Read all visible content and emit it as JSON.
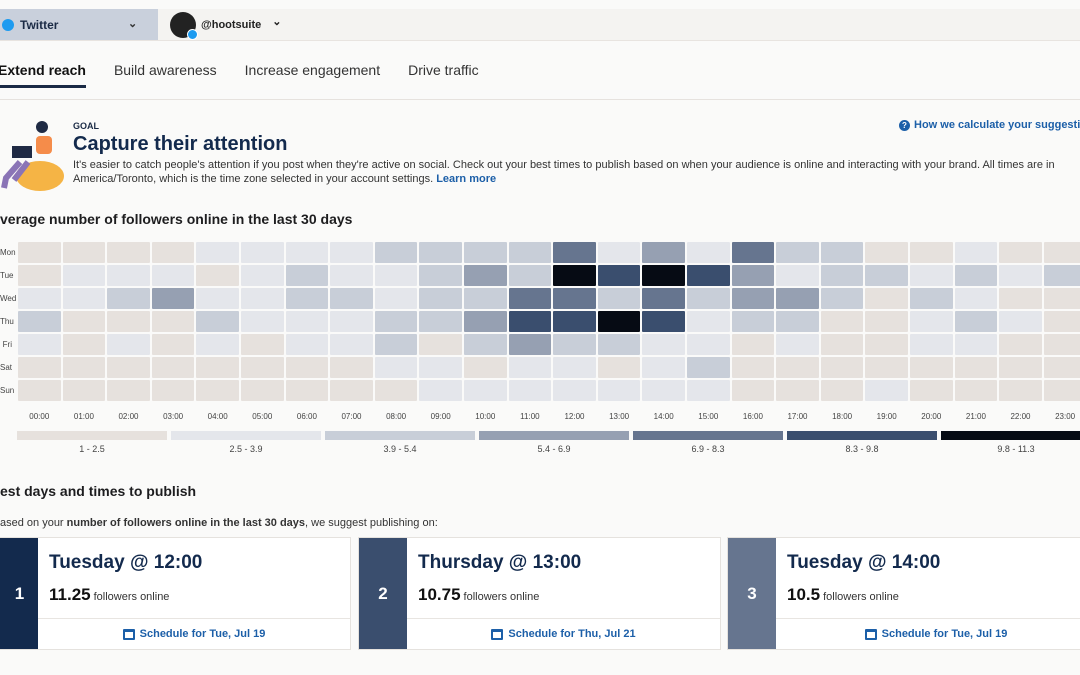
{
  "topbar": {
    "network": "Twitter",
    "account": "@hootsuite"
  },
  "tabs": [
    "Extend reach",
    "Build awareness",
    "Increase engagement",
    "Drive traffic"
  ],
  "goal": {
    "label": "GOAL",
    "title": "Capture their attention",
    "description": "It's easier to catch people's attention if you post when they're active on social. Check out your best times to publish based on when your audience is online and interacting with your brand. All times are in America/Toronto, which is the time zone selected in your account settings.",
    "learn_more": "Learn more",
    "how_link": "How we calculate your suggestion"
  },
  "heatmap_title": "verage number of followers online in the last 30 days",
  "chart_data": {
    "type": "heatmap",
    "title": "verage number of followers online in the last 30 days",
    "rows": [
      "Mon",
      "Tue",
      "Wed",
      "Thu",
      "Fri",
      "Sat",
      "Sun"
    ],
    "columns": [
      "00:00",
      "01:00",
      "02:00",
      "03:00",
      "04:00",
      "05:00",
      "06:00",
      "07:00",
      "08:00",
      "09:00",
      "10:00",
      "11:00",
      "12:00",
      "13:00",
      "14:00",
      "15:00",
      "16:00",
      "17:00",
      "18:00",
      "19:00",
      "20:00",
      "21:00",
      "22:00",
      "23:00"
    ],
    "bins": [
      {
        "label": "1 - 2.5",
        "min": 1,
        "max": 2.5,
        "color": "#e6e1dd"
      },
      {
        "label": "2.5 - 3.9",
        "min": 2.5,
        "max": 3.9,
        "color": "#e4e6eb"
      },
      {
        "label": "3.9 - 5.4",
        "min": 3.9,
        "max": 5.4,
        "color": "#c8ced8"
      },
      {
        "label": "5.4 - 6.9",
        "min": 5.4,
        "max": 6.9,
        "color": "#96a0b2"
      },
      {
        "label": "6.9 - 8.3",
        "min": 6.9,
        "max": 8.3,
        "color": "#66758f"
      },
      {
        "label": "8.3 - 9.8",
        "min": 8.3,
        "max": 9.8,
        "color": "#3a4e6e"
      },
      {
        "label": "9.8 - 11.3",
        "min": 9.8,
        "max": 11.3,
        "color": "#060b14"
      }
    ],
    "values": [
      [
        1.8,
        1.8,
        1.8,
        1.8,
        3.2,
        3.2,
        3.2,
        3.2,
        4.6,
        4.6,
        4.6,
        4.6,
        7.6,
        3.2,
        6.1,
        3.2,
        7.6,
        4.6,
        4.6,
        1.8,
        1.8,
        3.2,
        1.8,
        1.8
      ],
      [
        1.8,
        3.2,
        3.2,
        3.2,
        1.8,
        3.2,
        4.6,
        3.2,
        3.2,
        4.6,
        6.1,
        4.6,
        11.25,
        9.0,
        10.5,
        9.0,
        6.1,
        3.2,
        4.6,
        4.6,
        3.2,
        4.6,
        3.2,
        4.6
      ],
      [
        3.2,
        3.2,
        4.6,
        6.1,
        3.2,
        3.2,
        4.6,
        4.6,
        3.2,
        4.6,
        4.6,
        7.6,
        7.6,
        4.6,
        7.6,
        4.6,
        6.1,
        6.1,
        4.6,
        1.8,
        4.6,
        3.2,
        1.8,
        1.8
      ],
      [
        4.6,
        1.8,
        1.8,
        1.8,
        4.6,
        3.2,
        3.2,
        3.2,
        4.6,
        4.6,
        6.1,
        9.0,
        9.0,
        10.75,
        9.0,
        3.2,
        4.6,
        4.6,
        1.8,
        1.8,
        3.2,
        4.6,
        3.2,
        1.8
      ],
      [
        3.2,
        1.8,
        3.2,
        1.8,
        3.2,
        1.8,
        3.2,
        3.2,
        4.6,
        1.8,
        4.6,
        6.1,
        4.6,
        4.6,
        3.2,
        3.2,
        1.8,
        3.2,
        1.8,
        1.8,
        3.2,
        3.2,
        1.8,
        1.8
      ],
      [
        1.8,
        1.8,
        1.8,
        1.8,
        1.8,
        1.8,
        1.8,
        1.8,
        3.2,
        3.2,
        1.8,
        3.2,
        3.2,
        1.8,
        3.2,
        4.6,
        1.8,
        1.8,
        1.8,
        1.8,
        1.8,
        1.8,
        1.8,
        1.8
      ],
      [
        1.8,
        1.8,
        1.8,
        1.8,
        1.8,
        1.8,
        1.8,
        1.8,
        1.8,
        3.2,
        3.2,
        3.2,
        3.2,
        3.2,
        3.2,
        3.2,
        1.8,
        1.8,
        1.8,
        3.2,
        1.8,
        1.8,
        1.8,
        1.8
      ]
    ]
  },
  "best": {
    "title": "est days and times to publish",
    "sub_pre": "ased on your ",
    "sub_bold": "number of followers online in the last 30 days",
    "sub_post": ", we suggest publishing on:",
    "cards": [
      {
        "rank": "1",
        "when": "Tuesday @ 12:00",
        "count": "11.25",
        "unit": "followers online",
        "schedule": "Schedule for Tue, Jul 19",
        "color": "#132a4d"
      },
      {
        "rank": "2",
        "when": "Thursday @ 13:00",
        "count": "10.75",
        "unit": "followers online",
        "schedule": "Schedule for Thu, Jul 21",
        "color": "#3a4e6e"
      },
      {
        "rank": "3",
        "when": "Tuesday @ 14:00",
        "count": "10.5",
        "unit": "followers online",
        "schedule": "Schedule for Tue, Jul 19",
        "color": "#66758f"
      }
    ]
  }
}
